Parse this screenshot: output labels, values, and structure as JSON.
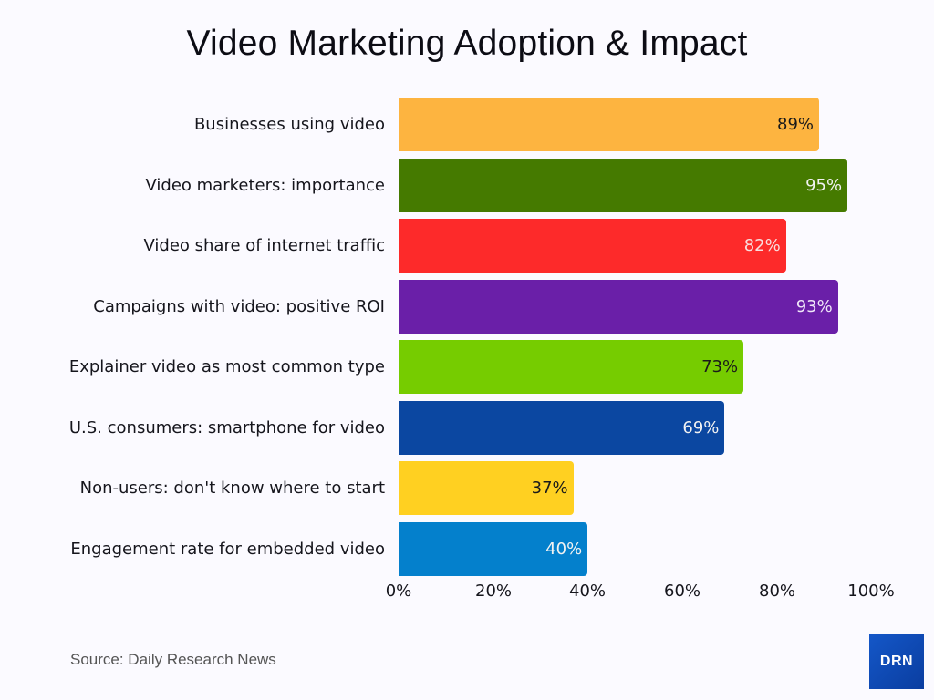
{
  "chart_data": {
    "type": "bar",
    "orientation": "horizontal",
    "title": "Video Marketing Adoption & Impact",
    "xlabel": "",
    "ylabel": "",
    "xlim": [
      0,
      100
    ],
    "x_ticks": [
      "0%",
      "20%",
      "40%",
      "60%",
      "80%",
      "100%"
    ],
    "grid": false,
    "legend": null,
    "categories": [
      "Businesses using video",
      "Video marketers: importance",
      "Video share of internet traffic",
      "Campaigns with video: positive ROI",
      "Explainer video as most common type",
      "U.S. consumers: smartphone for video",
      "Non-users: don't know where to start",
      "Engagement rate for embedded video"
    ],
    "values": [
      89,
      95,
      82,
      93,
      73,
      69,
      37,
      40
    ],
    "value_labels": [
      "89%",
      "95%",
      "82%",
      "93%",
      "73%",
      "69%",
      "37%",
      "40%"
    ],
    "colors": [
      "#fdb440",
      "#457a00",
      "#fd2a2a",
      "#6a1fa8",
      "#76cc00",
      "#0b47a1",
      "#ffd021",
      "#0480cc"
    ],
    "label_colors": [
      "#1a1a1a",
      "#f2f2f2",
      "#f8dede",
      "#efe6f8",
      "#1a1a1a",
      "#f2f2f2",
      "#1a1a1a",
      "#f2f2f2"
    ]
  },
  "footer": {
    "source": "Source: Daily Research News",
    "logo_text": "DRN"
  }
}
